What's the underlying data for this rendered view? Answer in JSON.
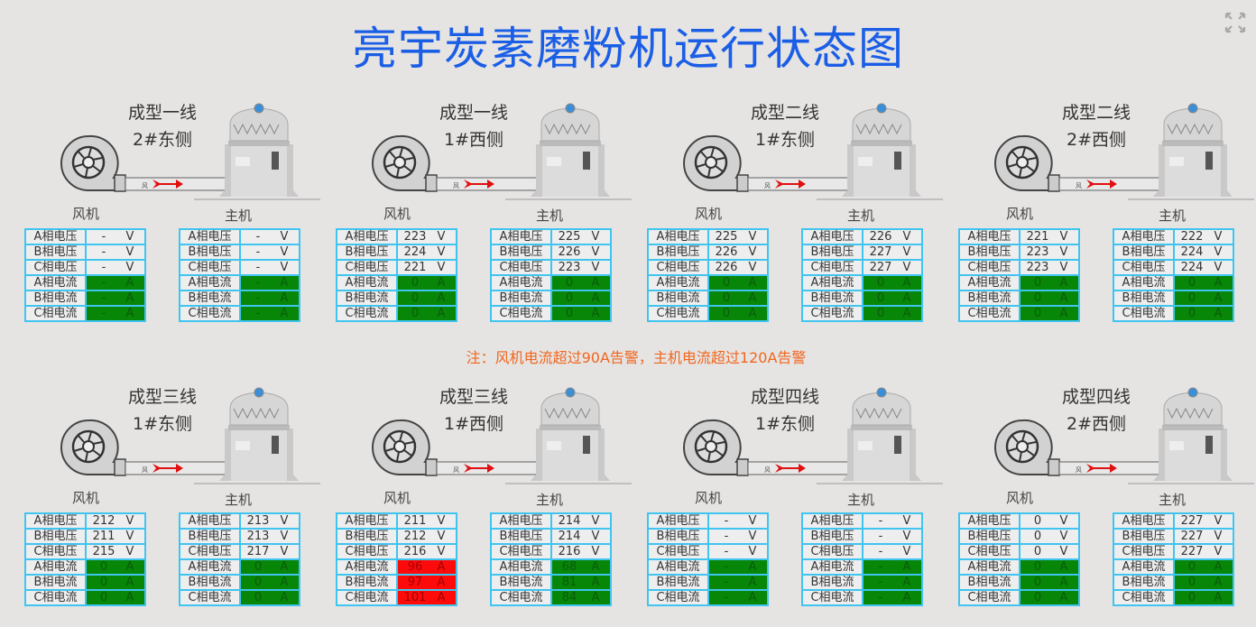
{
  "title": "亮宇炭素磨粉机运行状态图",
  "fullscreen_icon": "expand-arrows-icon",
  "note": "注：风机电流超过90A告警，主机电流超过120A告警",
  "thresholds": {
    "fan_current": 90,
    "main_current": 120
  },
  "labels": {
    "fan": "风机",
    "main": "主机",
    "pipe": "风"
  },
  "row_labels": [
    "A相电压",
    "B相电压",
    "C相电压",
    "A相电流",
    "B相电流",
    "C相电流"
  ],
  "units": {
    "voltage": "V",
    "current": "A"
  },
  "colors": {
    "title": "#1b5ee6",
    "note": "#f0661e",
    "normal": "#078607",
    "alarm": "#fd0b0b",
    "border": "#40c4f0"
  },
  "panels": [
    {
      "line": "成型一线",
      "side": "2#东侧",
      "fan": {
        "voltage": [
          "-",
          "-",
          "-"
        ],
        "current": [
          "-",
          "-",
          "-"
        ]
      },
      "main": {
        "voltage": [
          "-",
          "-",
          "-"
        ],
        "current": [
          "-",
          "-",
          "-"
        ]
      }
    },
    {
      "line": "成型一线",
      "side": "1#西侧",
      "fan": {
        "voltage": [
          "223",
          "224",
          "221"
        ],
        "current": [
          "0",
          "0",
          "0"
        ]
      },
      "main": {
        "voltage": [
          "225",
          "226",
          "223"
        ],
        "current": [
          "0",
          "0",
          "0"
        ]
      }
    },
    {
      "line": "成型二线",
      "side": "1#东侧",
      "fan": {
        "voltage": [
          "225",
          "226",
          "226"
        ],
        "current": [
          "0",
          "0",
          "0"
        ]
      },
      "main": {
        "voltage": [
          "226",
          "227",
          "227"
        ],
        "current": [
          "0",
          "0",
          "0"
        ]
      }
    },
    {
      "line": "成型二线",
      "side": "2#西侧",
      "fan": {
        "voltage": [
          "221",
          "223",
          "223"
        ],
        "current": [
          "0",
          "0",
          "0"
        ]
      },
      "main": {
        "voltage": [
          "222",
          "224",
          "224"
        ],
        "current": [
          "0",
          "0",
          "0"
        ]
      }
    },
    {
      "line": "成型三线",
      "side": "1#东侧",
      "fan": {
        "voltage": [
          "212",
          "211",
          "215"
        ],
        "current": [
          "0",
          "0",
          "0"
        ]
      },
      "main": {
        "voltage": [
          "213",
          "213",
          "217"
        ],
        "current": [
          "0",
          "0",
          "0"
        ]
      }
    },
    {
      "line": "成型三线",
      "side": "1#西侧",
      "fan": {
        "voltage": [
          "211",
          "212",
          "216"
        ],
        "current": [
          "96",
          "97",
          "101"
        ]
      },
      "main": {
        "voltage": [
          "214",
          "214",
          "216"
        ],
        "current": [
          "68",
          "81",
          "84"
        ]
      }
    },
    {
      "line": "成型四线",
      "side": "1#东侧",
      "fan": {
        "voltage": [
          "-",
          "-",
          "-"
        ],
        "current": [
          "-",
          "-",
          "-"
        ]
      },
      "main": {
        "voltage": [
          "-",
          "-",
          "-"
        ],
        "current": [
          "-",
          "-",
          "-"
        ]
      }
    },
    {
      "line": "成型四线",
      "side": "2#西侧",
      "fan": {
        "voltage": [
          "0",
          "0",
          "0"
        ],
        "current": [
          "0",
          "0",
          "0"
        ]
      },
      "main": {
        "voltage": [
          "227",
          "227",
          "227"
        ],
        "current": [
          "0",
          "0",
          "0"
        ]
      }
    }
  ]
}
